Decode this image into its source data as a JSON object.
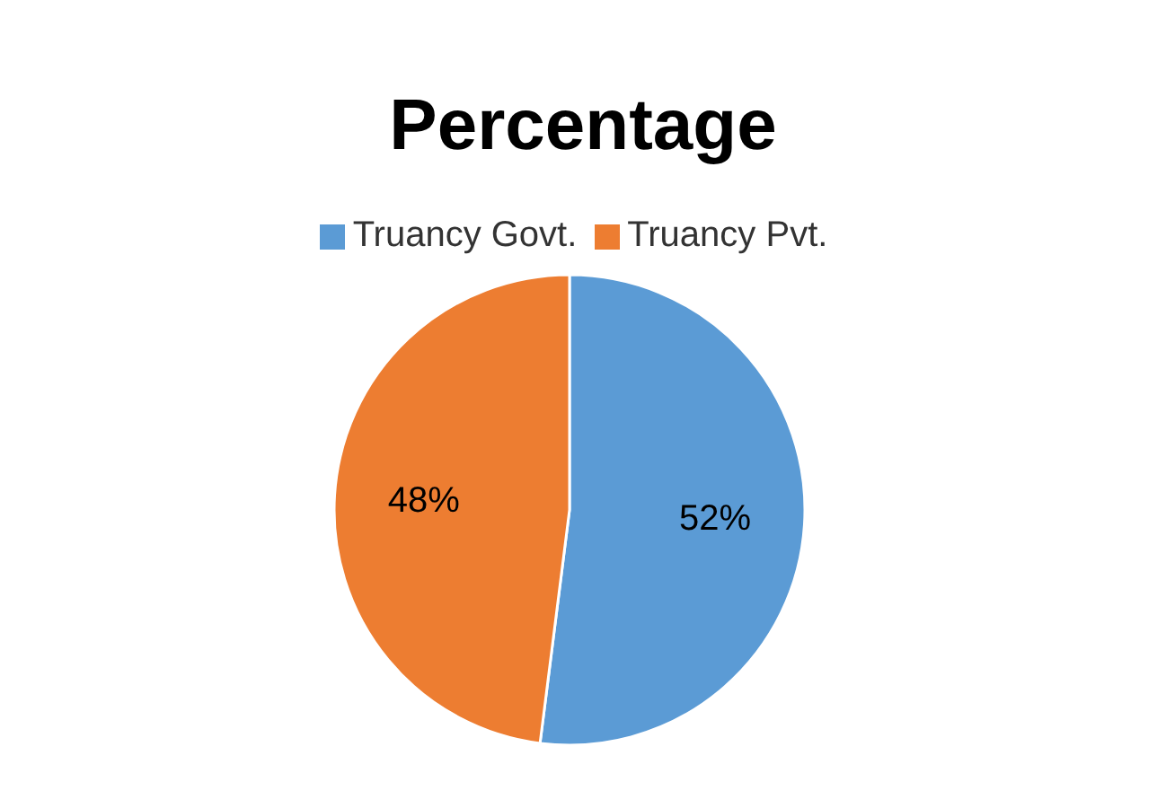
{
  "chart_data": {
    "type": "pie",
    "title": "Percentage",
    "categories": [
      "Truancy Govt.",
      "Truancy Pvt."
    ],
    "values": [
      52,
      48
    ],
    "colors": [
      "#5b9bd5",
      "#ed7d31"
    ],
    "value_labels": [
      "52%",
      "48%"
    ],
    "legend": "top"
  }
}
